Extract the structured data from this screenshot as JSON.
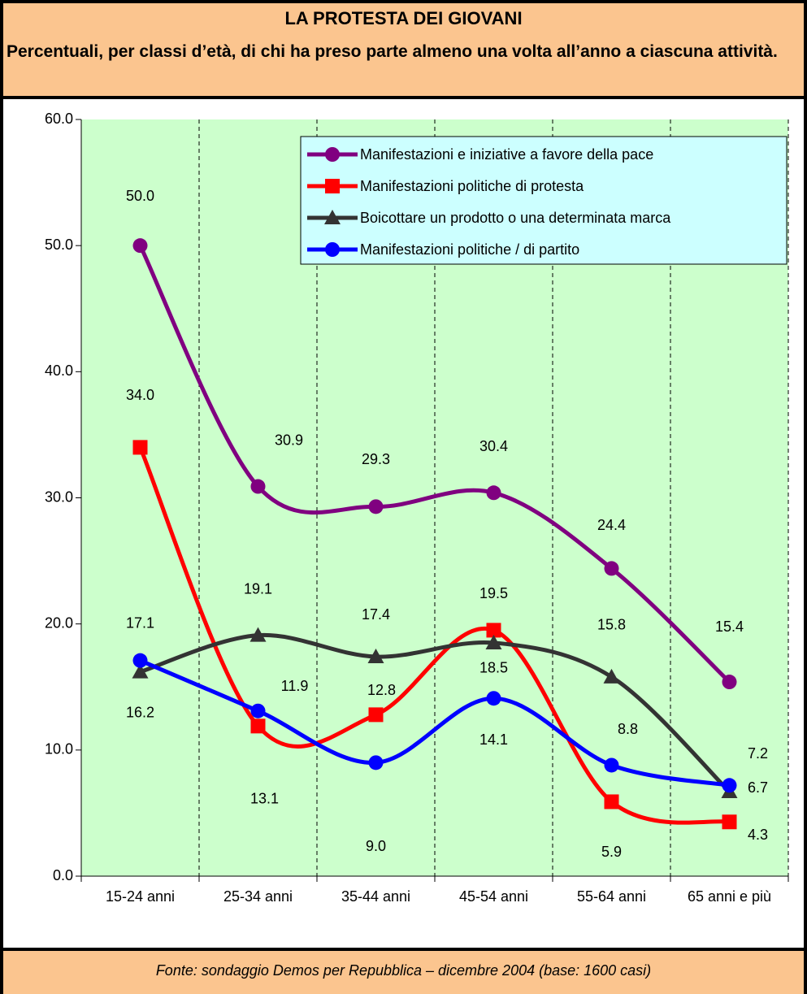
{
  "chart_data": {
    "type": "line",
    "title": "LA PROTESTA DEI GIOVANI",
    "subtitle": "Percentuali, per classi d’età, di chi ha preso parte almeno una volta all’anno a ciascuna attività.",
    "source": "Fonte: sondaggio Demos per Repubblica – dicembre 2004 (base: 1600 casi)",
    "categories": [
      "15-24 anni",
      "25-34 anni",
      "35-44 anni",
      "45-54 anni",
      "55-64 anni",
      "65 anni e più"
    ],
    "series": [
      {
        "name": "Manifestazioni e iniziative a favore della pace",
        "color": "#800080",
        "marker": "circle",
        "values": [
          50.0,
          30.9,
          29.3,
          30.4,
          24.4,
          15.4
        ],
        "value_labels": [
          "50.0",
          "30.9",
          "29.3",
          "30.4",
          "24.4",
          "15.4"
        ]
      },
      {
        "name": "Manifestazioni politiche di protesta",
        "color": "#ff0000",
        "marker": "square",
        "values": [
          34.0,
          11.9,
          12.8,
          19.5,
          5.9,
          4.3
        ],
        "value_labels": [
          "34.0",
          "11.9",
          "12.8",
          "19.5",
          "5.9",
          "4.3"
        ]
      },
      {
        "name": "Boicottare un prodotto o una determinata marca",
        "color": "#333333",
        "marker": "triangle",
        "values": [
          16.2,
          19.1,
          17.4,
          18.5,
          15.8,
          6.7
        ],
        "value_labels": [
          "16.2",
          "19.1",
          "17.4",
          "18.5",
          "15.8",
          "6.7"
        ]
      },
      {
        "name": "Manifestazioni politiche / di partito",
        "color": "#0000ff",
        "marker": "circle",
        "values": [
          17.1,
          13.1,
          9.0,
          14.1,
          8.8,
          7.2
        ],
        "value_labels": [
          "17.1",
          "13.1",
          "9.0",
          "14.1",
          "8.8",
          "7.2"
        ]
      }
    ],
    "ylim": [
      0,
      60
    ],
    "yticks": [
      {
        "value": 0,
        "label": "0.0"
      },
      {
        "value": 10,
        "label": "10.0"
      },
      {
        "value": 20,
        "label": "20.0"
      },
      {
        "value": 30,
        "label": "30.0"
      },
      {
        "value": 40,
        "label": "40.0"
      },
      {
        "value": 50,
        "label": "50.0"
      },
      {
        "value": 60,
        "label": "60.0"
      }
    ],
    "smooth": true,
    "plot_background": "#ccffcc",
    "legend_background": "#ccffff",
    "legend": "upper right"
  }
}
